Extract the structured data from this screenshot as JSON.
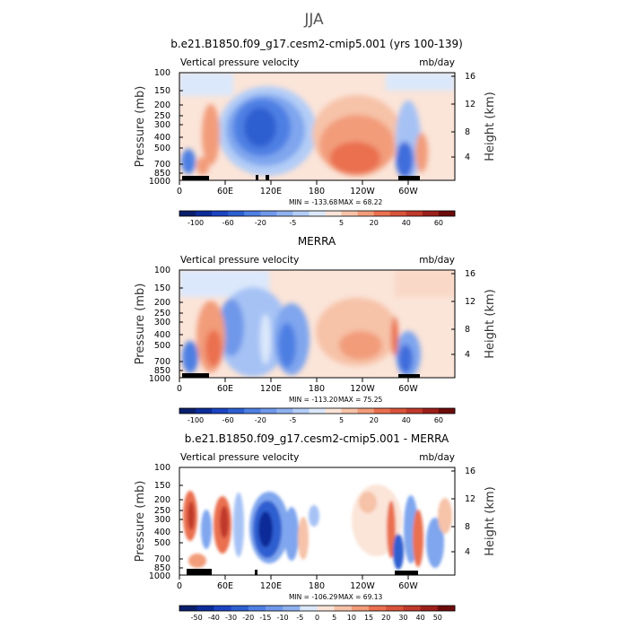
{
  "figure": {
    "season": "JJA",
    "variable_label": "Vertical pressure velocity",
    "units": "mb/day"
  },
  "axes": {
    "ylabel_left": "Pressure (mb)",
    "ylabel_right": "Height (km)",
    "pressure_ticks": [
      "100",
      "150",
      "200",
      "250",
      "300",
      "400",
      "500",
      "700",
      "850",
      "1000"
    ],
    "height_ticks": [
      "16",
      "12",
      "8",
      "4"
    ],
    "lon_ticks": [
      "0",
      "60E",
      "120E",
      "180",
      "120W",
      "60W"
    ]
  },
  "chart_data": [
    {
      "type": "heatmap",
      "title": "b.e21.B1850.f09_g17.cesm2-cmip5.001 (yrs 100-139)",
      "min_label": "MIN = -133.68",
      "max_label": "MAX =  68.22",
      "colorbar_labels": [
        "-100",
        "-60",
        "-20",
        "-5",
        "5",
        "20",
        "40",
        "60"
      ]
    },
    {
      "type": "heatmap",
      "title": "MERRA",
      "min_label": "MIN = -113.20",
      "max_label": "MAX =  75.25",
      "colorbar_labels": [
        "-100",
        "-60",
        "-20",
        "-5",
        "5",
        "20",
        "40",
        "60"
      ]
    },
    {
      "type": "heatmap",
      "title": "b.e21.B1850.f09_g17.cesm2-cmip5.001 - MERRA",
      "min_label": "MIN = -106.29",
      "max_label": "MAX =  69.13",
      "colorbar_labels": [
        "-50",
        "-40",
        "-30",
        "-20",
        "-15",
        "-10",
        "-5",
        "0",
        "5",
        "10",
        "15",
        "20",
        "30",
        "40",
        "50"
      ]
    }
  ]
}
